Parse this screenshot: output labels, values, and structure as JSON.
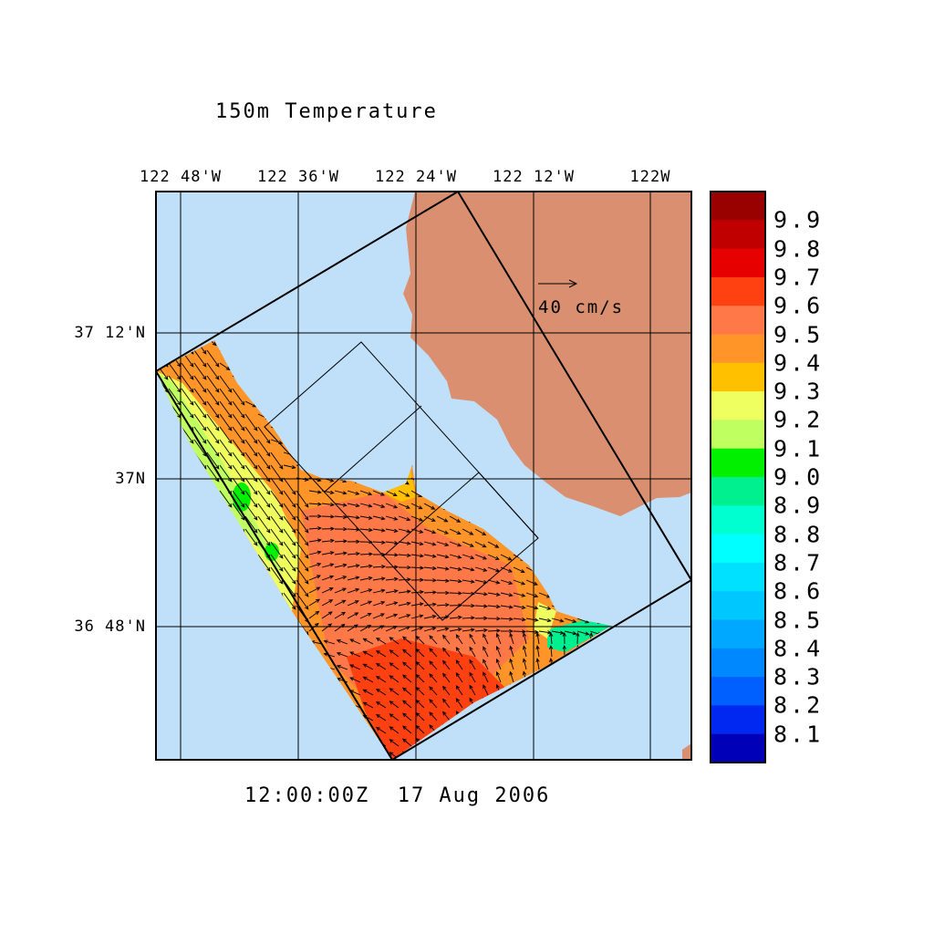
{
  "title": "150m Temperature",
  "time_label": "12:00:00Z  17 Aug 2006",
  "vector_scale_label": "40 cm/s",
  "lon_labels": [
    "122 48'W",
    "122 36'W",
    "122 24'W",
    "122 12'W",
    "122W"
  ],
  "lat_labels": [
    "37 12'N",
    "37N",
    "36 48'N"
  ],
  "colorbar": {
    "levels": [
      "9.9",
      "9.8",
      "9.7",
      "9.6",
      "9.5",
      "9.4",
      "9.3",
      "9.2",
      "9.1",
      "9.0",
      "8.9",
      "8.8",
      "8.7",
      "8.6",
      "8.5",
      "8.4",
      "8.3",
      "8.2",
      "8.1"
    ],
    "colors": [
      "#990000",
      "#c00000",
      "#e60000",
      "#ff4010",
      "#ff7848",
      "#ff9428",
      "#ffc000",
      "#f0ff60",
      "#c0ff60",
      "#00f000",
      "#00f090",
      "#00ffd0",
      "#00ffff",
      "#00e0ff",
      "#00c8ff",
      "#00a8ff",
      "#0088ff",
      "#0060ff",
      "#0028f0",
      "#0000b8"
    ]
  },
  "colors": {
    "ocean": "#c0e0fa",
    "land": "#da9070"
  }
}
